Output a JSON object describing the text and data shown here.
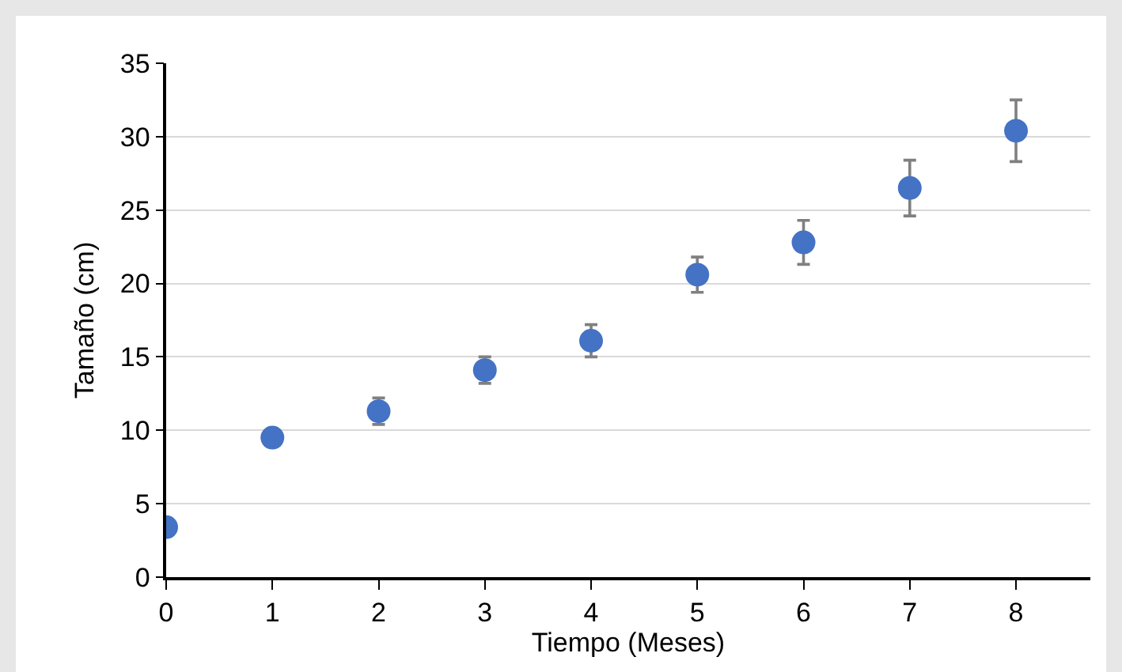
{
  "chart_data": {
    "type": "scatter",
    "xlabel": "Tiempo (Meses)",
    "ylabel": "Tamaño (cm)",
    "x": [
      0,
      1,
      2,
      3,
      4,
      5,
      6,
      7,
      8
    ],
    "values": [
      3.4,
      9.5,
      11.3,
      14.1,
      16.1,
      20.6,
      22.8,
      26.5,
      30.4
    ],
    "errors": [
      null,
      null,
      0.9,
      0.9,
      1.1,
      1.2,
      1.5,
      1.9,
      2.1
    ],
    "color": "#4472c4",
    "marker": "circle",
    "xlim": [
      0,
      8.7
    ],
    "xticks": [
      0,
      1,
      2,
      3,
      4,
      5,
      6,
      7,
      8
    ],
    "ylim": [
      0,
      35
    ],
    "yticks": [
      0,
      5,
      10,
      15,
      20,
      25,
      30,
      35
    ],
    "grid": "y"
  }
}
